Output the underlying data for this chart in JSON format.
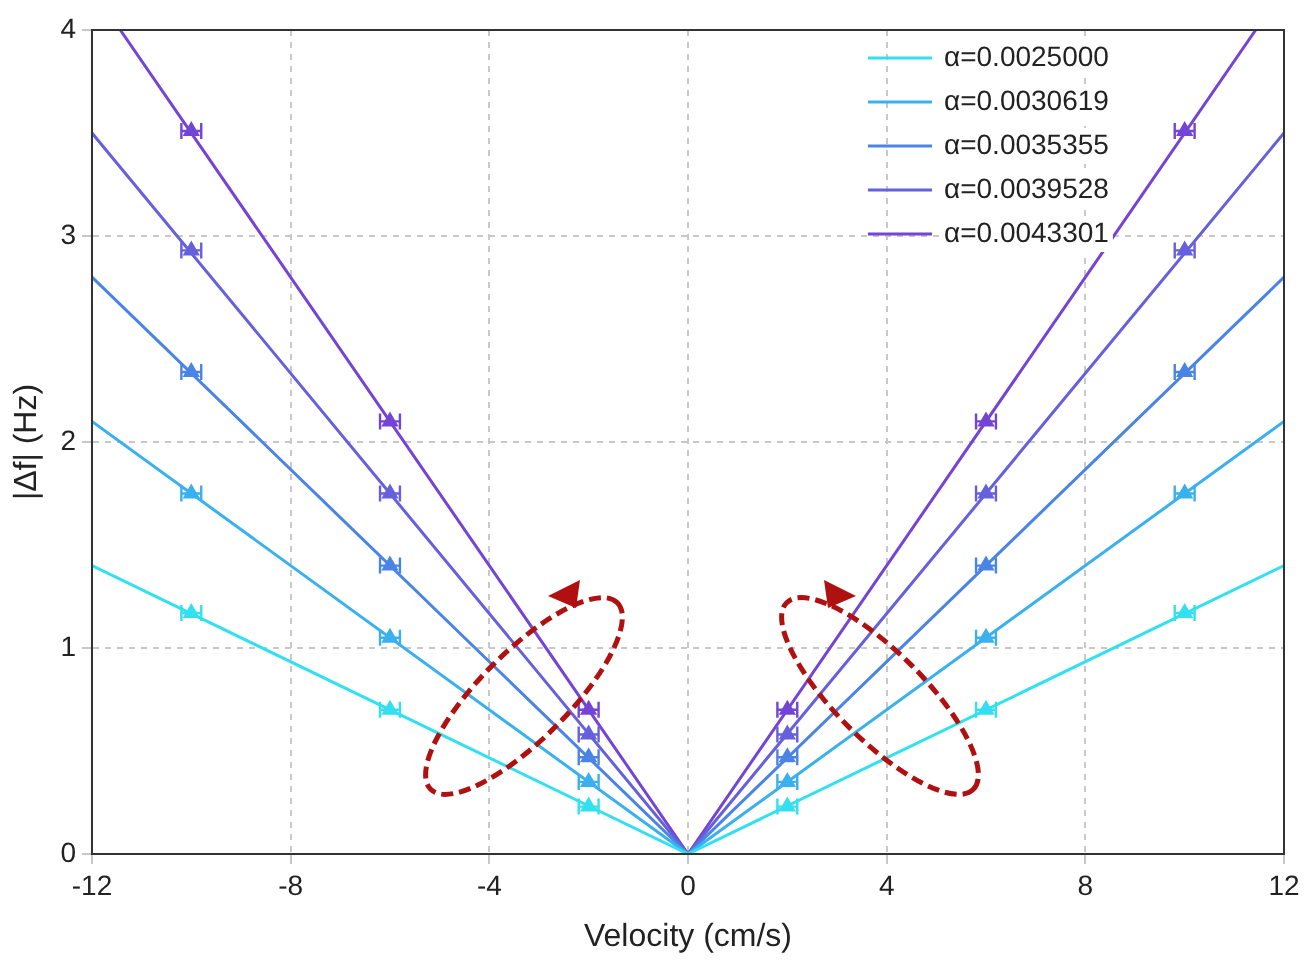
{
  "chart_data": {
    "type": "line",
    "xlabel": "Velocity (cm/s)",
    "ylabel": "|Δf| (Hz)",
    "xlim": [
      -12,
      12
    ],
    "xticks": [
      -12,
      -8,
      -4,
      0,
      4,
      8,
      12
    ],
    "ylim": [
      0,
      4
    ],
    "yticks": [
      0,
      1,
      2,
      3,
      4
    ],
    "grid": true,
    "legend": "top right",
    "marker": "none",
    "series": [
      {
        "name": "α=0.0025000",
        "color": "#33e0f0",
        "x": [
          -12,
          0,
          12
        ],
        "values": [
          1.4,
          0,
          1.4
        ]
      },
      {
        "name": "α=0.0030619",
        "color": "#3ab0ee",
        "x": [
          -12,
          0,
          12
        ],
        "values": [
          2.1,
          0,
          2.1
        ]
      },
      {
        "name": "α=0.0035355",
        "color": "#4a84e4",
        "x": [
          -12,
          0,
          12
        ],
        "values": [
          2.8,
          0,
          2.8
        ]
      },
      {
        "name": "α=0.0039528",
        "color": "#6660dc",
        "x": [
          -12,
          0,
          12
        ],
        "values": [
          3.5,
          0,
          3.5
        ]
      },
      {
        "name": "α=0.0043301",
        "color": "#7444d6",
        "x": [
          -11.43,
          0,
          11.43
        ],
        "values": [
          4,
          0,
          4
        ]
      },
      {
        "type": "scatter",
        "marker": "triangle",
        "color": "#33e0f0",
        "x": [
          -10,
          -6,
          -2,
          2,
          6,
          10
        ],
        "values": [
          1.17,
          0.7,
          0.23,
          0.23,
          0.7,
          1.17
        ],
        "xerrors": [
          0.2,
          0.2,
          0.2,
          0.2,
          0.2,
          0.2
        ]
      },
      {
        "type": "scatter",
        "marker": "triangle",
        "color": "#3ab0ee",
        "x": [
          -10,
          -6,
          -2,
          2,
          6,
          10
        ],
        "values": [
          1.75,
          1.05,
          0.35,
          0.35,
          1.05,
          1.75
        ],
        "xerrors": [
          0.2,
          0.2,
          0.2,
          0.2,
          0.2,
          0.2
        ]
      },
      {
        "type": "scatter",
        "marker": "triangle",
        "color": "#4a84e4",
        "x": [
          -10,
          -6,
          -2,
          2,
          6,
          10
        ],
        "values": [
          2.34,
          1.4,
          0.47,
          0.47,
          1.4,
          2.34
        ],
        "xerrors": [
          0.2,
          0.2,
          0.2,
          0.2,
          0.2,
          0.2
        ]
      },
      {
        "type": "scatter",
        "marker": "triangle",
        "color": "#6660dc",
        "x": [
          -10,
          -6,
          -2,
          2,
          6,
          10
        ],
        "values": [
          2.93,
          1.75,
          0.58,
          0.58,
          1.75,
          2.93
        ],
        "xerrors": [
          0.2,
          0.2,
          0.2,
          0.2,
          0.2,
          0.2
        ]
      },
      {
        "type": "scatter",
        "marker": "triangle",
        "color": "#7444d6",
        "x": [
          -10,
          -6,
          -2,
          2,
          6,
          10
        ],
        "values": [
          3.51,
          2.1,
          0.7,
          0.7,
          2.1,
          3.51
        ],
        "xerrors": [
          0.2,
          0.2,
          0.2,
          0.2,
          0.2,
          0.2
        ]
      }
    ]
  }
}
